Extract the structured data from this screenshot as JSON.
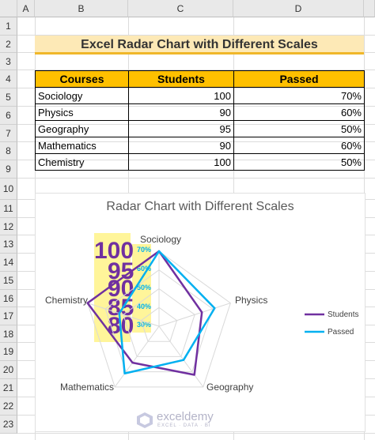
{
  "sheet": {
    "columns": [
      "A",
      "B",
      "C",
      "D"
    ],
    "rows": [
      "1",
      "2",
      "3",
      "4",
      "5",
      "6",
      "7",
      "8",
      "9",
      "10",
      "11",
      "12",
      "13",
      "14",
      "15",
      "16",
      "17",
      "18",
      "19",
      "20",
      "21",
      "22",
      "23"
    ]
  },
  "title": "Excel Radar Chart with Different Scales",
  "table": {
    "headers": [
      "Courses",
      "Students",
      "Passed"
    ],
    "rows": [
      [
        "Sociology",
        "100",
        "70%"
      ],
      [
        "Physics",
        "90",
        "60%"
      ],
      [
        "Geography",
        "95",
        "50%"
      ],
      [
        "Mathematics",
        "90",
        "60%"
      ],
      [
        "Chemistry",
        "100",
        "50%"
      ]
    ]
  },
  "chart_data": {
    "type": "radar",
    "title": "Radar Chart with Different Scales",
    "categories": [
      "Sociology",
      "Physics",
      "Geography",
      "Mathematics",
      "Chemistry"
    ],
    "series": [
      {
        "name": "Students",
        "values": [
          100,
          90,
          95,
          90,
          100
        ],
        "color": "#7030a0",
        "range": [
          75,
          100
        ]
      },
      {
        "name": "Passed",
        "values": [
          0.7,
          0.6,
          0.5,
          0.6,
          0.5
        ],
        "color": "#00b0f0",
        "range": [
          0.25,
          0.7
        ]
      }
    ],
    "student_scale_labels": [
      "100",
      "95",
      "90",
      "85",
      "80"
    ],
    "passed_scale_labels": [
      "70%",
      "60%",
      "50%",
      "40%",
      "30%"
    ],
    "legend_position": "right"
  },
  "watermark": {
    "name": "exceldemy",
    "tagline": "EXCEL · DATA · BI"
  }
}
